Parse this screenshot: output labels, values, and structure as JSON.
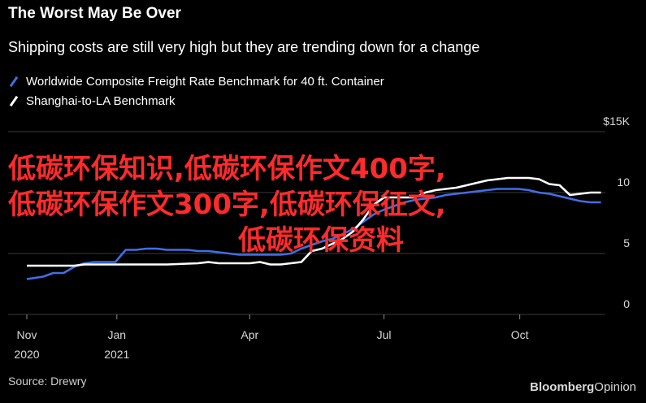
{
  "header": {
    "title": "The Worst May Be Over",
    "subtitle": "Shipping costs are still very high but they are trending down for a change"
  },
  "legend": [
    {
      "label": "Worldwide Composite Freight Rate Benchmark for 40 ft. Container",
      "color": "#3f6fe6"
    },
    {
      "label": "Shanghai-to-LA Benchmark",
      "color": "#ffffff"
    }
  ],
  "footer": {
    "source": "Source: Drewry",
    "brand_main": "Bloomberg",
    "brand_sub": "Opinion"
  },
  "overlay_text": {
    "line1": "低碳环保知识,低碳环保作文400字,",
    "line2": "低碳环保作文300字,低碳环保征文,",
    "line3": "低碳环保资料"
  },
  "chart_data": {
    "type": "line",
    "title": "The Worst May Be Over",
    "subtitle": "Shipping costs are still very high but they are trending down for a change",
    "x_ticks": [
      {
        "label": "Nov",
        "sub": "2020",
        "date": "2020-11-01"
      },
      {
        "label": "Jan",
        "sub": "2021",
        "date": "2021-01-01"
      },
      {
        "label": "Apr",
        "sub": "",
        "date": "2021-04-01"
      },
      {
        "label": "Jul",
        "sub": "",
        "date": "2021-07-01"
      },
      {
        "label": "Oct",
        "sub": "",
        "date": "2021-10-01"
      }
    ],
    "y_ticks": [
      {
        "value": 15,
        "label": "$15K"
      },
      {
        "value": 10,
        "label": "10"
      },
      {
        "value": 5,
        "label": "5"
      },
      {
        "value": 0,
        "label": "0"
      }
    ],
    "xlim": [
      "2020-11-01",
      "2021-11-28"
    ],
    "ylim": [
      0,
      15
    ],
    "grid": true,
    "legend_position": "top-left",
    "series": [
      {
        "name": "Worldwide Composite Freight Rate Benchmark for 40 ft. Container",
        "color": "#3f6fe6",
        "points": [
          [
            "2020-11-01",
            2.9
          ],
          [
            "2020-11-12",
            3.1
          ],
          [
            "2020-11-19",
            3.4
          ],
          [
            "2020-11-26",
            3.4
          ],
          [
            "2020-12-03",
            3.9
          ],
          [
            "2020-12-10",
            4.2
          ],
          [
            "2020-12-17",
            4.3
          ],
          [
            "2020-12-31",
            4.3
          ],
          [
            "2021-01-07",
            5.3
          ],
          [
            "2021-01-14",
            5.3
          ],
          [
            "2021-01-21",
            5.4
          ],
          [
            "2021-01-28",
            5.4
          ],
          [
            "2021-02-04",
            5.3
          ],
          [
            "2021-02-18",
            5.3
          ],
          [
            "2021-02-25",
            5.2
          ],
          [
            "2021-03-04",
            5.2
          ],
          [
            "2021-03-11",
            5.1
          ],
          [
            "2021-03-18",
            5.0
          ],
          [
            "2021-03-25",
            4.9
          ],
          [
            "2021-04-01",
            4.9
          ],
          [
            "2021-04-08",
            4.9
          ],
          [
            "2021-04-15",
            4.9
          ],
          [
            "2021-04-22",
            4.9
          ],
          [
            "2021-04-29",
            5.0
          ],
          [
            "2021-05-06",
            5.4
          ],
          [
            "2021-05-13",
            5.7
          ],
          [
            "2021-05-20",
            6.0
          ],
          [
            "2021-05-27",
            6.2
          ],
          [
            "2021-06-03",
            6.6
          ],
          [
            "2021-06-10",
            7.0
          ],
          [
            "2021-06-17",
            7.6
          ],
          [
            "2021-06-24",
            8.2
          ],
          [
            "2021-07-01",
            8.6
          ],
          [
            "2021-07-08",
            8.9
          ],
          [
            "2021-07-15",
            9.2
          ],
          [
            "2021-07-22",
            9.4
          ],
          [
            "2021-07-29",
            9.5
          ],
          [
            "2021-08-05",
            9.6
          ],
          [
            "2021-08-12",
            9.8
          ],
          [
            "2021-08-19",
            9.9
          ],
          [
            "2021-08-26",
            10.0
          ],
          [
            "2021-09-02",
            10.1
          ],
          [
            "2021-09-09",
            10.2
          ],
          [
            "2021-09-16",
            10.3
          ],
          [
            "2021-09-23",
            10.3
          ],
          [
            "2021-09-30",
            10.3
          ],
          [
            "2021-10-07",
            10.2
          ],
          [
            "2021-10-14",
            10.0
          ],
          [
            "2021-10-21",
            9.9
          ],
          [
            "2021-10-28",
            9.7
          ],
          [
            "2021-11-04",
            9.5
          ],
          [
            "2021-11-11",
            9.3
          ],
          [
            "2021-11-18",
            9.2
          ],
          [
            "2021-11-25",
            9.2
          ]
        ]
      },
      {
        "name": "Shanghai-to-LA Benchmark",
        "color": "#ffffff",
        "points": [
          [
            "2020-11-01",
            4.0
          ],
          [
            "2020-11-26",
            4.0
          ],
          [
            "2020-12-03",
            4.0
          ],
          [
            "2020-12-10",
            4.1
          ],
          [
            "2020-12-31",
            4.1
          ],
          [
            "2021-01-14",
            4.1
          ],
          [
            "2021-02-04",
            4.1
          ],
          [
            "2021-02-25",
            4.2
          ],
          [
            "2021-03-04",
            4.3
          ],
          [
            "2021-03-11",
            4.2
          ],
          [
            "2021-03-18",
            4.2
          ],
          [
            "2021-03-25",
            4.2
          ],
          [
            "2021-04-01",
            4.2
          ],
          [
            "2021-04-08",
            4.3
          ],
          [
            "2021-04-15",
            4.1
          ],
          [
            "2021-04-22",
            4.1
          ],
          [
            "2021-04-29",
            4.2
          ],
          [
            "2021-05-06",
            4.3
          ],
          [
            "2021-05-13",
            5.2
          ],
          [
            "2021-05-20",
            5.4
          ],
          [
            "2021-05-27",
            5.8
          ],
          [
            "2021-06-03",
            6.2
          ],
          [
            "2021-06-10",
            6.8
          ],
          [
            "2021-06-17",
            7.8
          ],
          [
            "2021-06-24",
            9.0
          ],
          [
            "2021-07-01",
            9.6
          ],
          [
            "2021-07-08",
            9.6
          ],
          [
            "2021-07-15",
            9.6
          ],
          [
            "2021-07-22",
            9.6
          ],
          [
            "2021-07-29",
            10.0
          ],
          [
            "2021-08-05",
            10.2
          ],
          [
            "2021-08-12",
            10.3
          ],
          [
            "2021-08-19",
            10.4
          ],
          [
            "2021-08-26",
            10.6
          ],
          [
            "2021-09-02",
            10.8
          ],
          [
            "2021-09-09",
            11.0
          ],
          [
            "2021-09-16",
            11.1
          ],
          [
            "2021-09-23",
            11.2
          ],
          [
            "2021-09-30",
            11.2
          ],
          [
            "2021-10-07",
            11.2
          ],
          [
            "2021-10-14",
            11.1
          ],
          [
            "2021-10-21",
            10.7
          ],
          [
            "2021-10-28",
            10.6
          ],
          [
            "2021-11-04",
            9.8
          ],
          [
            "2021-11-11",
            9.9
          ],
          [
            "2021-11-18",
            10.0
          ],
          [
            "2021-11-25",
            10.0
          ]
        ]
      }
    ]
  }
}
